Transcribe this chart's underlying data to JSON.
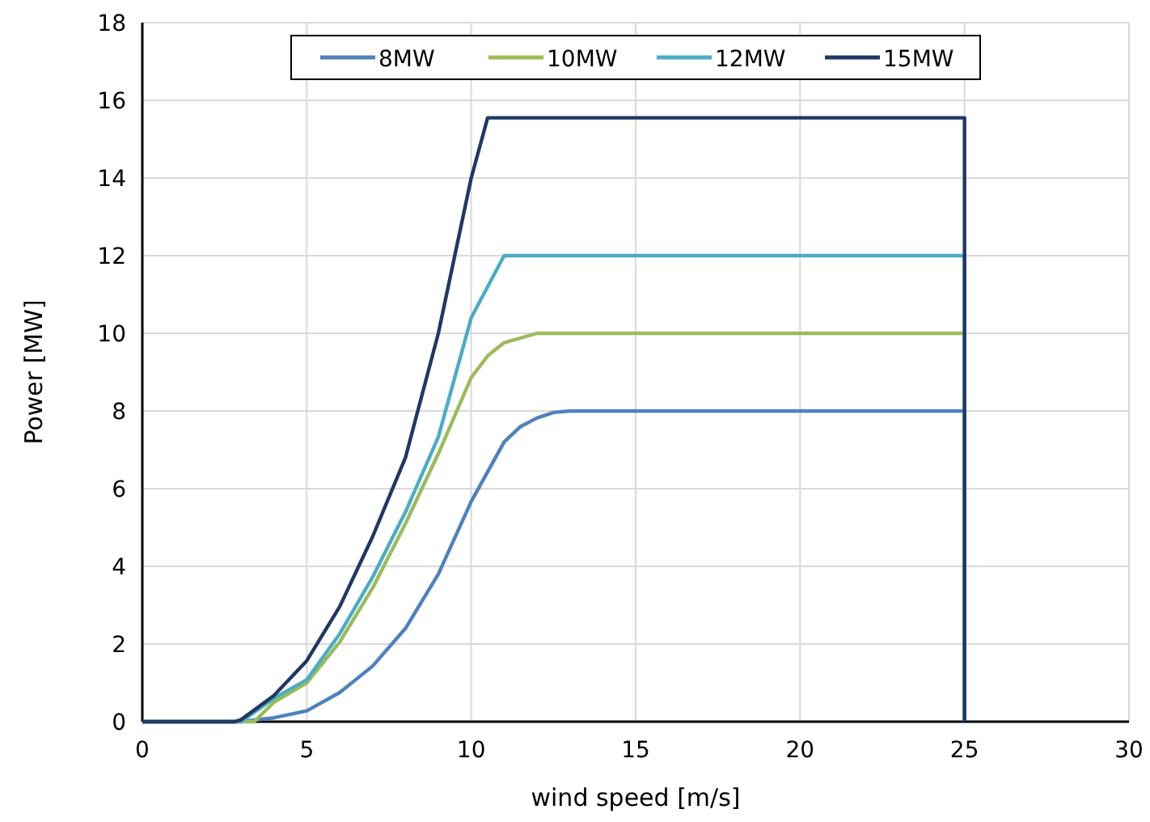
{
  "chart_data": {
    "type": "line",
    "xlabel": "wind speed [m/s]",
    "ylabel": "Power [MW]",
    "xlim": [
      0,
      30
    ],
    "ylim": [
      0,
      18
    ],
    "xticks": [
      0,
      5,
      10,
      15,
      20,
      25,
      30
    ],
    "yticks": [
      0,
      2,
      4,
      6,
      8,
      10,
      12,
      14,
      16,
      18
    ],
    "grid": true,
    "legend": "top",
    "marker": "none",
    "line_style": "solid",
    "series": [
      {
        "name": "8MW",
        "color": "#4f81bd",
        "x": [
          0,
          3,
          4,
          5,
          6,
          7,
          8,
          9,
          10,
          11,
          11.5,
          12,
          12.5,
          13,
          25,
          25
        ],
        "values": [
          0,
          0,
          0.1,
          0.28,
          0.75,
          1.43,
          2.4,
          3.8,
          5.67,
          7.2,
          7.6,
          7.82,
          7.96,
          8,
          8,
          0
        ]
      },
      {
        "name": "10MW",
        "color": "#9bbb59",
        "x": [
          0,
          3.4,
          4,
          5,
          6,
          7,
          8,
          9,
          10,
          10.5,
          11,
          12,
          25,
          25
        ],
        "values": [
          0,
          0,
          0.5,
          1,
          2.05,
          3.44,
          5.1,
          6.9,
          8.86,
          9.42,
          9.76,
          10,
          10,
          0
        ]
      },
      {
        "name": "12MW",
        "color": "#4bacc6",
        "x": [
          0,
          3,
          4,
          5,
          6,
          7,
          8,
          9,
          10,
          11,
          25,
          25
        ],
        "values": [
          0,
          0,
          0.6,
          1.08,
          2.26,
          3.72,
          5.4,
          7.33,
          10.4,
          12,
          12,
          0
        ]
      },
      {
        "name": "15MW",
        "color": "#1f3864",
        "x": [
          0,
          2.8,
          3,
          4,
          5,
          6,
          7,
          8,
          9,
          10,
          10.5,
          25,
          25
        ],
        "values": [
          0,
          0,
          0.05,
          0.67,
          1.57,
          2.96,
          4.76,
          6.8,
          10,
          14,
          15.55,
          15.55,
          0
        ]
      }
    ]
  }
}
